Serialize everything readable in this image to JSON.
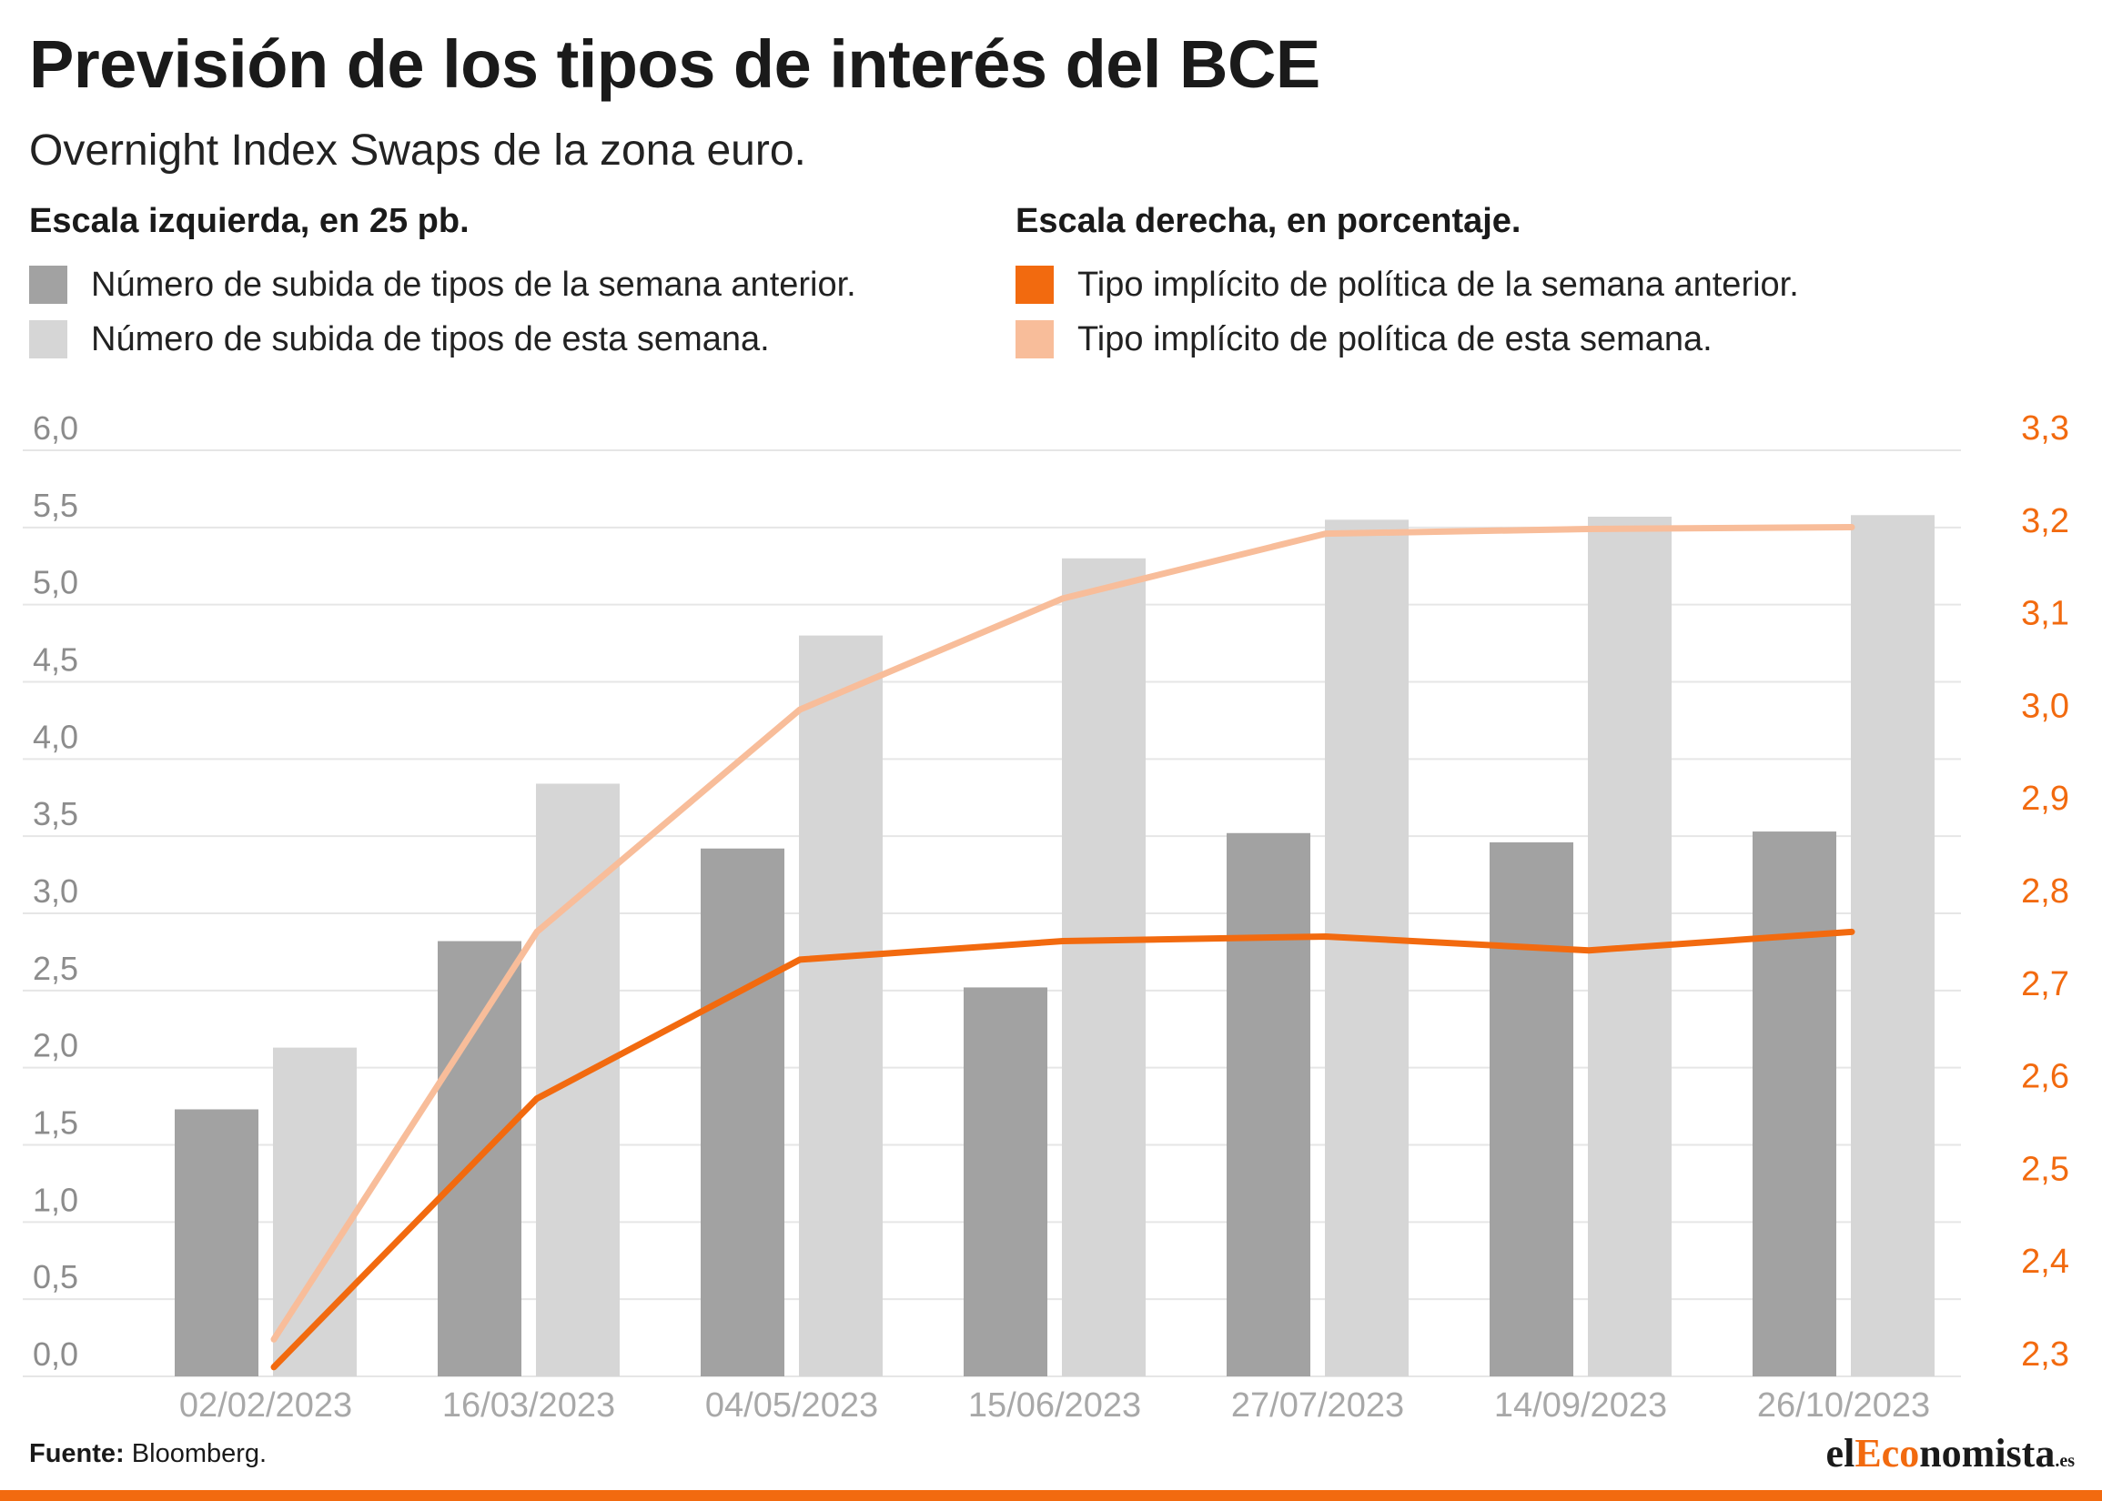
{
  "header": {
    "title": "Previsión de los tipos de interés del BCE",
    "subtitle": "Overnight Index Swaps de la zona euro."
  },
  "legend": {
    "left_heading": "Escala izquierda, en 25 pb.",
    "right_heading": "Escala derecha, en porcentaje.",
    "items": [
      {
        "label": "Número de subida de tipos de la semana anterior.",
        "color": "#a2a2a2"
      },
      {
        "label": "Número de subida de tipos de esta semana.",
        "color": "#d6d6d6"
      },
      {
        "label": "Tipo implícito de política de la semana anterior.",
        "color": "#f26a0f"
      },
      {
        "label": "Tipo implícito de política de esta semana.",
        "color": "#f8bd9a"
      }
    ]
  },
  "footer": {
    "source_label": "Fuente:",
    "source_text": "Bloomberg.",
    "brand_prefix": "el",
    "brand_highlight": "Eco",
    "brand_suffix": "nomista",
    "brand_tld": ".es"
  },
  "chart_data": {
    "type": "bar",
    "categories": [
      "02/02/2023",
      "16/03/2023",
      "04/05/2023",
      "15/06/2023",
      "27/07/2023",
      "14/09/2023",
      "26/10/2023"
    ],
    "series": [
      {
        "name": "Número de subida de tipos de la semana anterior.",
        "type": "bar",
        "axis": "left",
        "color": "#a2a2a2",
        "values": [
          1.73,
          2.82,
          3.42,
          2.52,
          3.52,
          3.46,
          3.53
        ]
      },
      {
        "name": "Número de subida de tipos de esta semana.",
        "type": "bar",
        "axis": "left",
        "color": "#d6d6d6",
        "values": [
          2.13,
          3.84,
          4.8,
          5.3,
          5.55,
          5.57,
          5.58
        ]
      },
      {
        "name": "Tipo implícito de política de la semana anterior.",
        "type": "line",
        "axis": "right",
        "color": "#f26a0f",
        "values": [
          2.31,
          2.6,
          2.75,
          2.77,
          2.775,
          2.76,
          2.78
        ]
      },
      {
        "name": "Tipo implícito de política de esta semana.",
        "type": "line",
        "axis": "right",
        "color": "#f8bd9a",
        "values": [
          2.34,
          2.78,
          3.02,
          3.14,
          3.21,
          3.215,
          3.217
        ]
      }
    ],
    "y_left": {
      "ticks": [
        "0,0",
        "0,5",
        "1,0",
        "1,5",
        "2,0",
        "2,5",
        "3,0",
        "3,5",
        "4,0",
        "4,5",
        "5,0",
        "5,5",
        "6,0"
      ],
      "range": [
        0,
        6
      ],
      "unit": "25 pb"
    },
    "y_right": {
      "ticks": [
        "2,3",
        "2,4",
        "2,5",
        "2,6",
        "2,7",
        "2,8",
        "2,9",
        "3,0",
        "3,1",
        "3,2",
        "3,3"
      ],
      "range": [
        2.3,
        3.3
      ],
      "unit": "%"
    },
    "grid": true,
    "legend_position": "top"
  }
}
